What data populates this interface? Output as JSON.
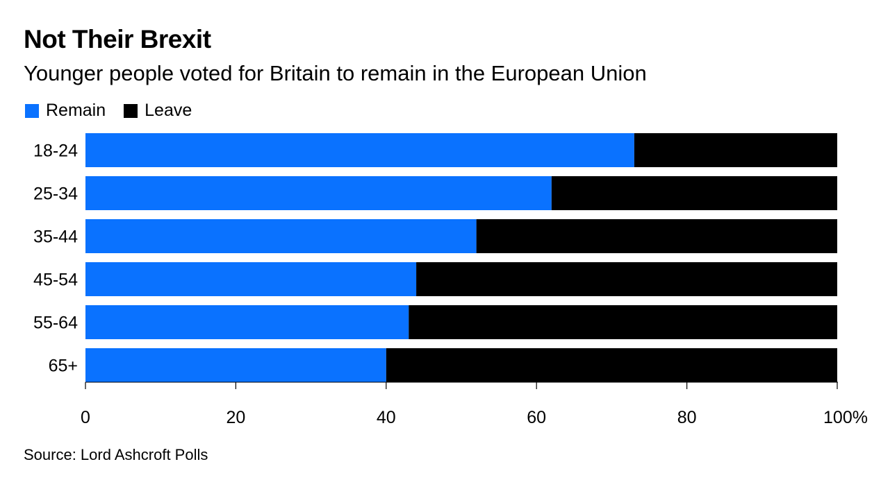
{
  "title": "Not Their Brexit",
  "subtitle": "Younger people voted for Britain to remain in the European Union",
  "source": "Source: Lord Ashcroft Polls",
  "colors": {
    "remain": "#0A72FF",
    "leave": "#000000"
  },
  "chart_data": {
    "type": "bar",
    "orientation": "horizontal",
    "stacked": true,
    "categories": [
      "18-24",
      "25-34",
      "35-44",
      "45-54",
      "55-64",
      "65+"
    ],
    "series": [
      {
        "name": "Remain",
        "values": [
          73,
          62,
          52,
          44,
          43,
          40
        ]
      },
      {
        "name": "Leave",
        "values": [
          27,
          38,
          48,
          56,
          57,
          60
        ]
      }
    ],
    "xlim": [
      0,
      100
    ],
    "xticks": [
      0,
      20,
      40,
      60,
      80,
      100
    ],
    "xtick_labels": [
      "0",
      "20",
      "40",
      "60",
      "80",
      "100%"
    ],
    "legend": {
      "placement": "top-left",
      "labels": [
        "Remain",
        "Leave"
      ]
    },
    "grid": false
  }
}
